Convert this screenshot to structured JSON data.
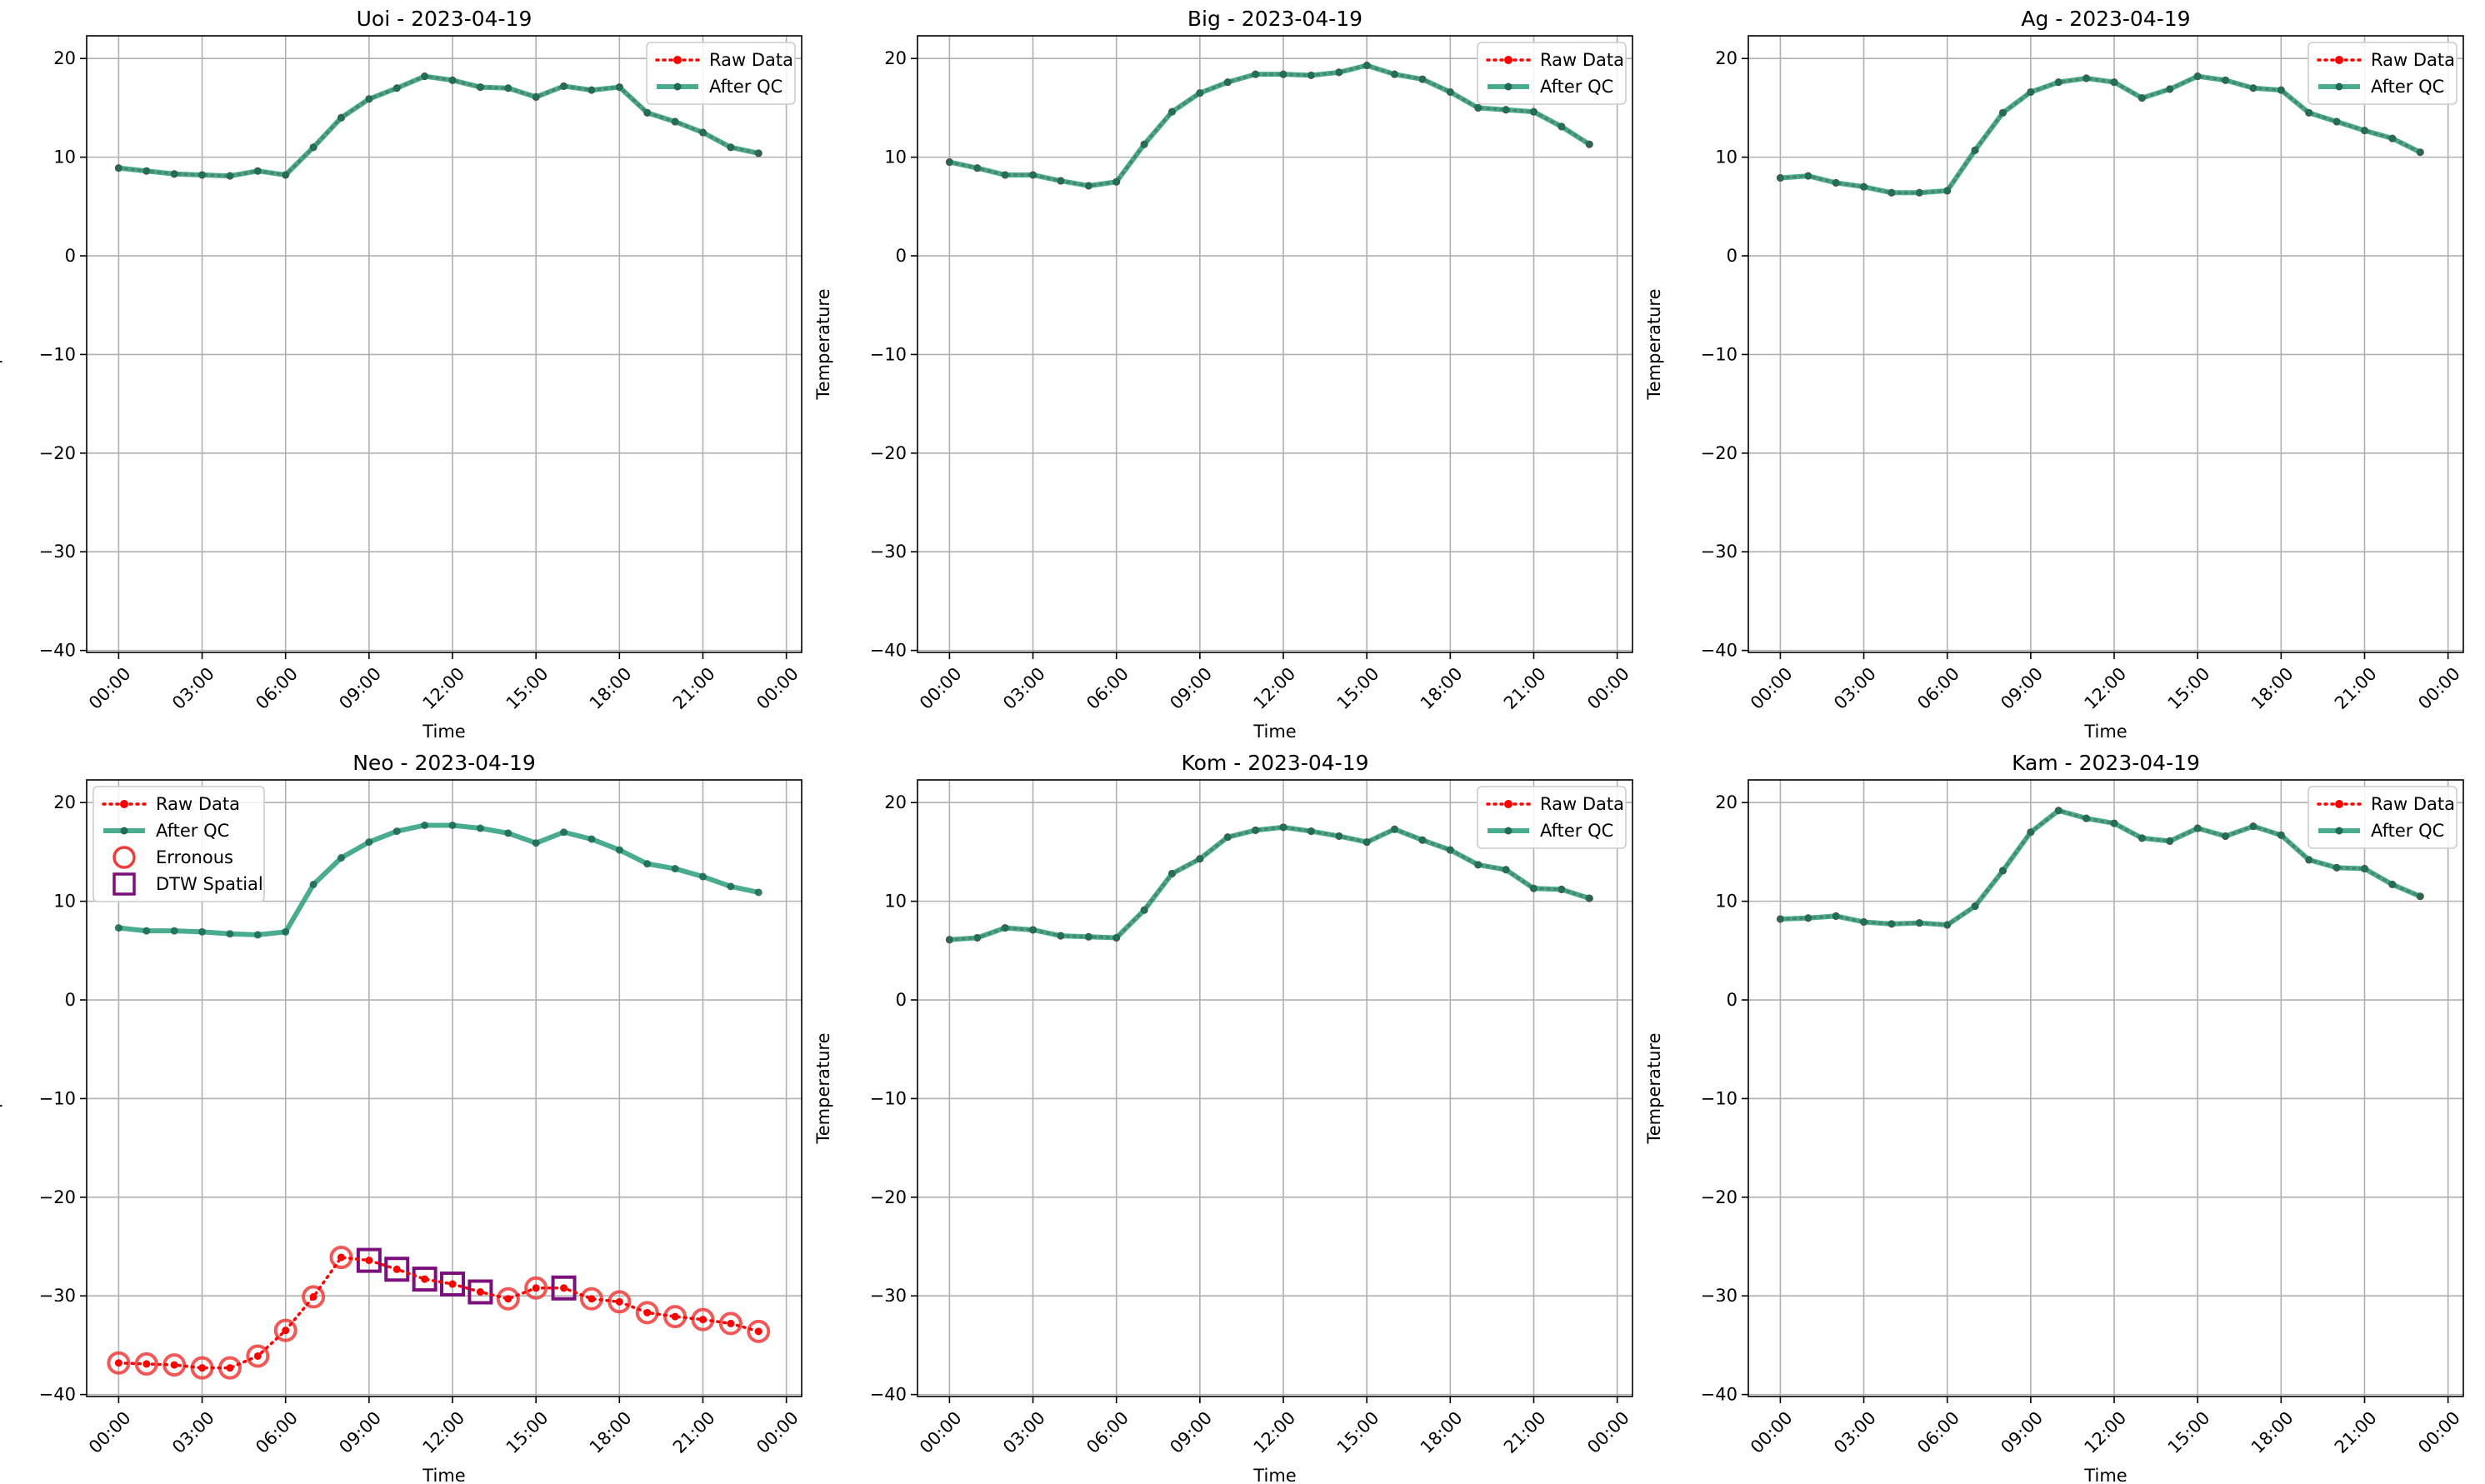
{
  "colors": {
    "raw": "#ff0000",
    "qc": "#2a9d7a",
    "erroneous": "#ef3b3b",
    "dtw": "#7b0f7b",
    "grid": "#b0b0b0"
  },
  "legend_labels": {
    "raw": "Raw Data",
    "qc": "After QC",
    "erroneous": "Erronous",
    "dtw": "DTW Spatial"
  },
  "chart_data": [
    {
      "type": "line",
      "title": "Uoi - 2023-04-19",
      "xlabel": "Time",
      "ylabel": "Temperature",
      "xticks": [
        "00:00",
        "03:00",
        "06:00",
        "09:00",
        "12:00",
        "15:00",
        "18:00",
        "21:00",
        "00:00"
      ],
      "yticks": [
        -40,
        -30,
        -20,
        -10,
        0,
        10,
        20
      ],
      "ylim": [
        -40,
        20
      ],
      "grid": true,
      "legend_position": "upper right",
      "x_hours": [
        0,
        1,
        2,
        3,
        4,
        5,
        6,
        7,
        8,
        9,
        10,
        11,
        12,
        13,
        14,
        15,
        16,
        17,
        18,
        19,
        20,
        21,
        22,
        23
      ],
      "series": [
        {
          "name": "Raw Data",
          "values": [
            8.9,
            8.6,
            8.3,
            8.2,
            8.1,
            8.6,
            8.2,
            11.0,
            14.0,
            15.9,
            17.0,
            18.2,
            17.8,
            17.1,
            17.0,
            16.1,
            17.2,
            16.8,
            17.1,
            14.5,
            13.6,
            12.5,
            11.0,
            10.4
          ]
        },
        {
          "name": "After QC",
          "values": [
            8.9,
            8.6,
            8.3,
            8.2,
            8.1,
            8.6,
            8.2,
            11.0,
            14.0,
            15.9,
            17.0,
            18.2,
            17.8,
            17.1,
            17.0,
            16.1,
            17.2,
            16.8,
            17.1,
            14.5,
            13.6,
            12.5,
            11.0,
            10.4
          ]
        }
      ]
    },
    {
      "type": "line",
      "title": "Big - 2023-04-19",
      "xlabel": "Time",
      "ylabel": "Temperature",
      "xticks": [
        "00:00",
        "03:00",
        "06:00",
        "09:00",
        "12:00",
        "15:00",
        "18:00",
        "21:00",
        "00:00"
      ],
      "yticks": [
        -40,
        -30,
        -20,
        -10,
        0,
        10,
        20
      ],
      "ylim": [
        -40,
        20
      ],
      "grid": true,
      "legend_position": "upper right",
      "x_hours": [
        0,
        1,
        2,
        3,
        4,
        5,
        6,
        7,
        8,
        9,
        10,
        11,
        12,
        13,
        14,
        15,
        16,
        17,
        18,
        19,
        20,
        21,
        22,
        23
      ],
      "series": [
        {
          "name": "Raw Data",
          "values": [
            9.5,
            8.9,
            8.2,
            8.2,
            7.6,
            7.1,
            7.5,
            11.3,
            14.6,
            16.5,
            17.6,
            18.4,
            18.4,
            18.3,
            18.6,
            19.3,
            18.4,
            17.9,
            16.6,
            15.0,
            14.8,
            14.6,
            13.1,
            11.3
          ]
        },
        {
          "name": "After QC",
          "values": [
            9.5,
            8.9,
            8.2,
            8.2,
            7.6,
            7.1,
            7.5,
            11.3,
            14.6,
            16.5,
            17.6,
            18.4,
            18.4,
            18.3,
            18.6,
            19.3,
            18.4,
            17.9,
            16.6,
            15.0,
            14.8,
            14.6,
            13.1,
            11.3
          ]
        }
      ]
    },
    {
      "type": "line",
      "title": "Ag - 2023-04-19",
      "xlabel": "Time",
      "ylabel": "Temperature",
      "xticks": [
        "00:00",
        "03:00",
        "06:00",
        "09:00",
        "12:00",
        "15:00",
        "18:00",
        "21:00",
        "00:00"
      ],
      "yticks": [
        -40,
        -30,
        -20,
        -10,
        0,
        10,
        20
      ],
      "ylim": [
        -40,
        20
      ],
      "grid": true,
      "legend_position": "upper right",
      "x_hours": [
        0,
        1,
        2,
        3,
        4,
        5,
        6,
        7,
        8,
        9,
        10,
        11,
        12,
        13,
        14,
        15,
        16,
        17,
        18,
        19,
        20,
        21,
        22,
        23
      ],
      "series": [
        {
          "name": "Raw Data",
          "values": [
            7.9,
            8.1,
            7.4,
            7.0,
            6.4,
            6.4,
            6.6,
            10.7,
            14.5,
            16.6,
            17.6,
            18.0,
            17.6,
            16.0,
            16.9,
            18.2,
            17.8,
            17.0,
            16.8,
            14.5,
            13.6,
            12.7,
            11.9,
            10.5
          ]
        },
        {
          "name": "After QC",
          "values": [
            7.9,
            8.1,
            7.4,
            7.0,
            6.4,
            6.4,
            6.6,
            10.7,
            14.5,
            16.6,
            17.6,
            18.0,
            17.6,
            16.0,
            16.9,
            18.2,
            17.8,
            17.0,
            16.8,
            14.5,
            13.6,
            12.7,
            11.9,
            10.5
          ]
        }
      ]
    },
    {
      "type": "line",
      "title": "Neo - 2023-04-19",
      "xlabel": "Time",
      "ylabel": "Temperature",
      "xticks": [
        "00:00",
        "03:00",
        "06:00",
        "09:00",
        "12:00",
        "15:00",
        "18:00",
        "21:00",
        "00:00"
      ],
      "yticks": [
        -40,
        -30,
        -20,
        -10,
        0,
        10,
        20
      ],
      "ylim": [
        -40,
        20
      ],
      "grid": true,
      "legend_position": "upper left",
      "x_hours": [
        0,
        1,
        2,
        3,
        4,
        5,
        6,
        7,
        8,
        9,
        10,
        11,
        12,
        13,
        14,
        15,
        16,
        17,
        18,
        19,
        20,
        21,
        22,
        23
      ],
      "series": [
        {
          "name": "Raw Data",
          "values": [
            -36.8,
            -36.9,
            -37.0,
            -37.3,
            -37.3,
            -36.1,
            -33.5,
            -30.1,
            -26.1,
            -26.4,
            -27.3,
            -28.3,
            -28.8,
            -29.6,
            -30.3,
            -29.2,
            -29.2,
            -30.3,
            -30.6,
            -31.7,
            -32.1,
            -32.4,
            -32.8,
            -33.6
          ]
        },
        {
          "name": "After QC",
          "values": [
            7.3,
            7.0,
            7.0,
            6.9,
            6.7,
            6.6,
            6.9,
            11.7,
            14.4,
            16.0,
            17.1,
            17.7,
            17.7,
            17.4,
            16.9,
            15.9,
            17.0,
            16.3,
            15.2,
            13.8,
            13.3,
            12.5,
            11.5,
            10.9
          ]
        },
        {
          "name": "Erronous",
          "x_hours": [
            0,
            1,
            2,
            3,
            4,
            5,
            6,
            7,
            8,
            14,
            15,
            17,
            18,
            19,
            20,
            21,
            22,
            23
          ],
          "values": [
            -36.8,
            -36.9,
            -37.0,
            -37.3,
            -37.3,
            -36.1,
            -33.5,
            -30.1,
            -26.1,
            -30.3,
            -29.2,
            -30.3,
            -30.6,
            -31.7,
            -32.1,
            -32.4,
            -32.8,
            -33.6
          ]
        },
        {
          "name": "DTW Spatial",
          "x_hours": [
            9,
            10,
            11,
            12,
            13,
            16
          ],
          "values": [
            -26.4,
            -27.3,
            -28.3,
            -28.8,
            -29.6,
            -29.2
          ]
        }
      ]
    },
    {
      "type": "line",
      "title": "Kom - 2023-04-19",
      "xlabel": "Time",
      "ylabel": "Temperature",
      "xticks": [
        "00:00",
        "03:00",
        "06:00",
        "09:00",
        "12:00",
        "15:00",
        "18:00",
        "21:00",
        "00:00"
      ],
      "yticks": [
        -40,
        -30,
        -20,
        -10,
        0,
        10,
        20
      ],
      "ylim": [
        -40,
        20
      ],
      "grid": true,
      "legend_position": "upper right",
      "x_hours": [
        0,
        1,
        2,
        3,
        4,
        5,
        6,
        7,
        8,
        9,
        10,
        11,
        12,
        13,
        14,
        15,
        16,
        17,
        18,
        19,
        20,
        21,
        22,
        23
      ],
      "series": [
        {
          "name": "Raw Data",
          "values": [
            6.1,
            6.3,
            7.3,
            7.1,
            6.5,
            6.4,
            6.3,
            9.1,
            12.8,
            14.3,
            16.5,
            17.2,
            17.5,
            17.1,
            16.6,
            16.0,
            17.3,
            16.2,
            15.2,
            13.7,
            13.2,
            11.3,
            11.2,
            10.3
          ]
        },
        {
          "name": "After QC",
          "values": [
            6.1,
            6.3,
            7.3,
            7.1,
            6.5,
            6.4,
            6.3,
            9.1,
            12.8,
            14.3,
            16.5,
            17.2,
            17.5,
            17.1,
            16.6,
            16.0,
            17.3,
            16.2,
            15.2,
            13.7,
            13.2,
            11.3,
            11.2,
            10.3
          ]
        }
      ]
    },
    {
      "type": "line",
      "title": "Kam - 2023-04-19",
      "xlabel": "Time",
      "ylabel": "Temperature",
      "xticks": [
        "00:00",
        "03:00",
        "06:00",
        "09:00",
        "12:00",
        "15:00",
        "18:00",
        "21:00",
        "00:00"
      ],
      "yticks": [
        -40,
        -30,
        -20,
        -10,
        0,
        10,
        20
      ],
      "ylim": [
        -40,
        20
      ],
      "grid": true,
      "legend_position": "upper right",
      "x_hours": [
        0,
        1,
        2,
        3,
        4,
        5,
        6,
        7,
        8,
        9,
        10,
        11,
        12,
        13,
        14,
        15,
        16,
        17,
        18,
        19,
        20,
        21,
        22,
        23
      ],
      "series": [
        {
          "name": "Raw Data",
          "values": [
            8.2,
            8.3,
            8.5,
            7.9,
            7.7,
            7.8,
            7.6,
            9.5,
            13.1,
            17.0,
            19.2,
            18.4,
            17.9,
            16.4,
            16.1,
            17.4,
            16.6,
            17.6,
            16.7,
            14.2,
            13.4,
            13.3,
            11.7,
            10.5
          ]
        },
        {
          "name": "After QC",
          "values": [
            8.2,
            8.3,
            8.5,
            7.9,
            7.7,
            7.8,
            7.6,
            9.5,
            13.1,
            17.0,
            19.2,
            18.4,
            17.9,
            16.4,
            16.1,
            17.4,
            16.6,
            17.6,
            16.7,
            14.2,
            13.4,
            13.3,
            11.7,
            10.5
          ]
        }
      ]
    }
  ]
}
